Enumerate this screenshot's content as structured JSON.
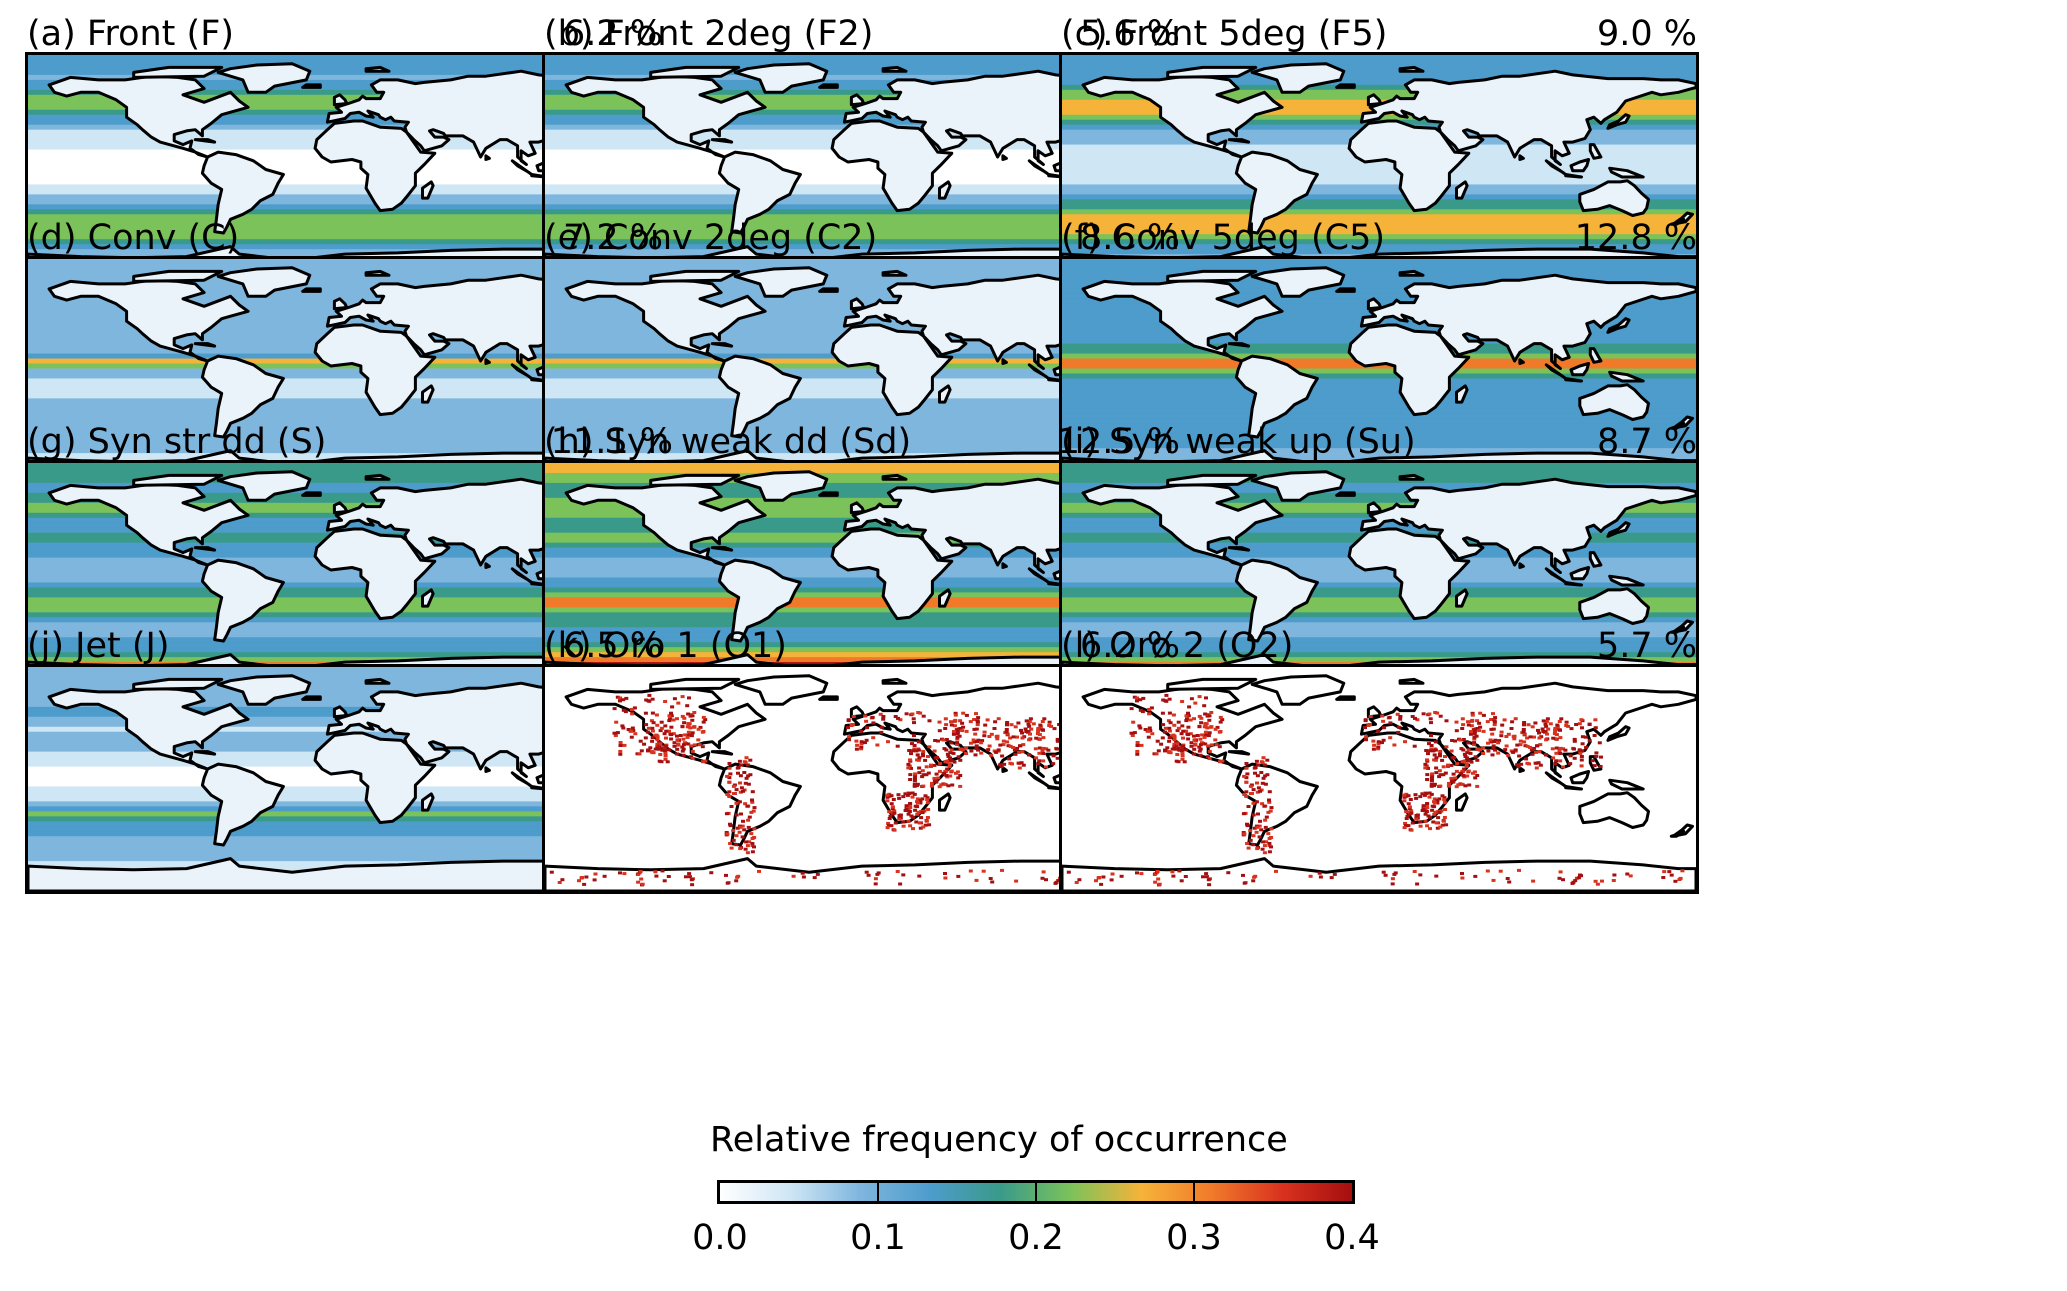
{
  "colorbar": {
    "label": "Relative frequency of occurrence",
    "ticks": [
      "0.0",
      "0.1",
      "0.2",
      "0.3",
      "0.4"
    ],
    "range": [
      0.0,
      0.4
    ],
    "colors": [
      "#ffffff",
      "#cfe6f5",
      "#7fb6de",
      "#4d9ccb",
      "#3a9a8a",
      "#7cc25a",
      "#f6b33a",
      "#f07a2a",
      "#d9321f",
      "#a50f0f"
    ]
  },
  "panels": [
    {
      "title": "(a) Front (F)",
      "pct": "6.2 %",
      "variant": "front"
    },
    {
      "title": "(b) Front 2deg (F2)",
      "pct": "5.6 %",
      "variant": "front"
    },
    {
      "title": "(c) Front 5deg (F5)",
      "pct": "9.0 %",
      "variant": "front-strong"
    },
    {
      "title": "(d) Conv (C)",
      "pct": "7.2 %",
      "variant": "conv"
    },
    {
      "title": "(e) Conv 2deg (C2)",
      "pct": "8.6 %",
      "variant": "conv"
    },
    {
      "title": "(f) Conv 5deg (C5)",
      "pct": "12.8 %",
      "variant": "conv-strong"
    },
    {
      "title": "(g) Syn str dd (S)",
      "pct": "11.1 %",
      "variant": "syn"
    },
    {
      "title": "(h) Syn weak dd (Sd)",
      "pct": "12.5 %",
      "variant": "syn-strong"
    },
    {
      "title": "(i) Syn weak up (Su)",
      "pct": "8.7 %",
      "variant": "syn"
    },
    {
      "title": "(j) Jet (J)",
      "pct": "6.5 %",
      "variant": "jet"
    },
    {
      "title": "(k) Oro 1 (O1)",
      "pct": "6.2 %",
      "variant": "oro"
    },
    {
      "title": "(l) Oro 2 (O2)",
      "pct": "5.7 %",
      "variant": "oro"
    }
  ]
}
